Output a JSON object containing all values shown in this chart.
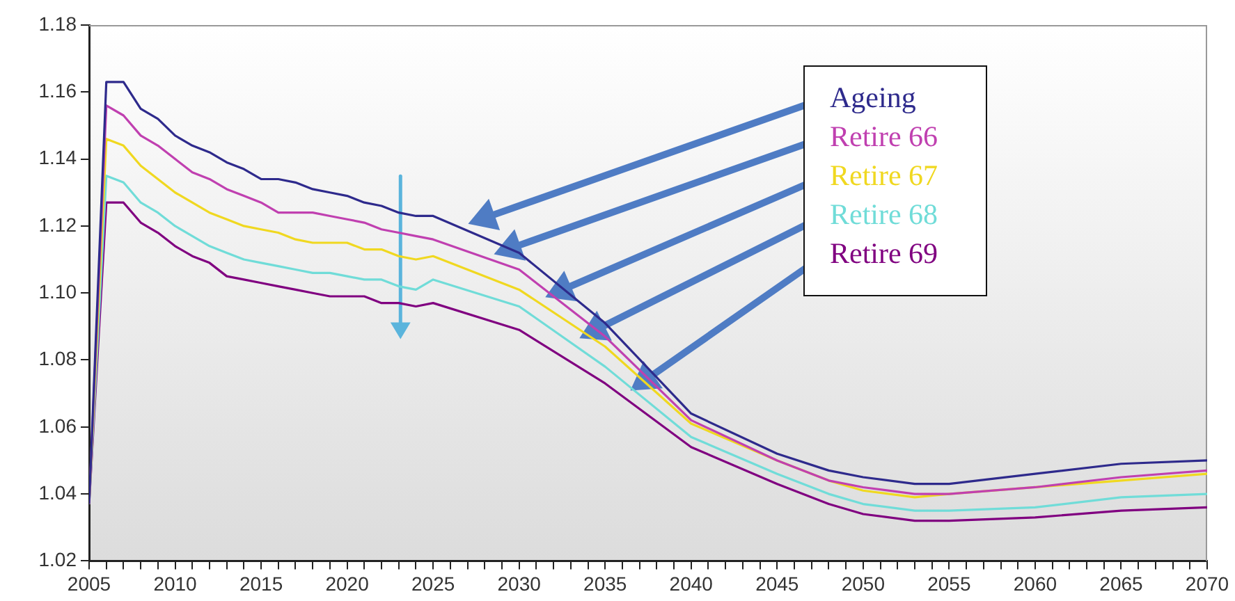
{
  "chart_data": {
    "type": "line",
    "x": [
      2005,
      2006,
      2007,
      2008,
      2009,
      2010,
      2011,
      2012,
      2013,
      2014,
      2015,
      2016,
      2017,
      2018,
      2019,
      2020,
      2021,
      2022,
      2023,
      2024,
      2025,
      2030,
      2035,
      2040,
      2045,
      2048,
      2050,
      2053,
      2055,
      2060,
      2065,
      2070
    ],
    "series": [
      {
        "name": "Ageing",
        "color": "#2e2a8c",
        "values": [
          1.037,
          1.163,
          1.163,
          1.155,
          1.152,
          1.147,
          1.144,
          1.142,
          1.139,
          1.137,
          1.134,
          1.134,
          1.133,
          1.131,
          1.13,
          1.129,
          1.127,
          1.126,
          1.124,
          1.123,
          1.123,
          1.112,
          1.091,
          1.064,
          1.052,
          1.047,
          1.045,
          1.043,
          1.043,
          1.046,
          1.049,
          1.05
        ]
      },
      {
        "name": "Retire 66",
        "color": "#c040b0",
        "values": [
          1.037,
          1.156,
          1.153,
          1.147,
          1.144,
          1.14,
          1.136,
          1.134,
          1.131,
          1.129,
          1.127,
          1.124,
          1.124,
          1.124,
          1.123,
          1.122,
          1.121,
          1.119,
          1.118,
          1.117,
          1.116,
          1.107,
          1.087,
          1.062,
          1.05,
          1.044,
          1.042,
          1.04,
          1.04,
          1.042,
          1.045,
          1.047
        ]
      },
      {
        "name": "Retire 67",
        "color": "#f0d820",
        "values": [
          1.037,
          1.146,
          1.144,
          1.138,
          1.134,
          1.13,
          1.127,
          1.124,
          1.122,
          1.12,
          1.119,
          1.118,
          1.116,
          1.115,
          1.115,
          1.115,
          1.113,
          1.113,
          1.111,
          1.11,
          1.111,
          1.101,
          1.084,
          1.061,
          1.05,
          1.044,
          1.041,
          1.039,
          1.04,
          1.042,
          1.044,
          1.046
        ]
      },
      {
        "name": "Retire 68",
        "color": "#70dcd8",
        "values": [
          1.037,
          1.135,
          1.133,
          1.127,
          1.124,
          1.12,
          1.117,
          1.114,
          1.112,
          1.11,
          1.109,
          1.108,
          1.107,
          1.106,
          1.106,
          1.105,
          1.104,
          1.104,
          1.102,
          1.101,
          1.104,
          1.096,
          1.078,
          1.057,
          1.046,
          1.04,
          1.037,
          1.035,
          1.035,
          1.036,
          1.039,
          1.04
        ]
      },
      {
        "name": "Retire 69",
        "color": "#800080",
        "values": [
          1.037,
          1.127,
          1.127,
          1.121,
          1.118,
          1.114,
          1.111,
          1.109,
          1.105,
          1.104,
          1.103,
          1.102,
          1.101,
          1.1,
          1.099,
          1.099,
          1.099,
          1.097,
          1.097,
          1.096,
          1.097,
          1.089,
          1.073,
          1.054,
          1.043,
          1.037,
          1.034,
          1.032,
          1.032,
          1.033,
          1.035,
          1.036
        ]
      }
    ],
    "xlim": [
      2005,
      2070
    ],
    "xticks": [
      2005,
      {
        "value": 2006,
        "label": null
      },
      {
        "value": 2007,
        "label": null
      },
      {
        "value": 2008,
        "label": null
      },
      {
        "value": 2009,
        "label": null
      },
      2010,
      {
        "value": 2011,
        "label": null
      },
      {
        "value": 2012,
        "label": null
      },
      {
        "value": 2013,
        "label": null
      },
      {
        "value": 2014,
        "label": null
      },
      2015,
      {
        "value": 2016,
        "label": null
      },
      {
        "value": 2017,
        "label": null
      },
      {
        "value": 2018,
        "label": null
      },
      {
        "value": 2019,
        "label": null
      },
      2020,
      {
        "value": 2021,
        "label": null
      },
      {
        "value": 2022,
        "label": null
      },
      {
        "value": 2023,
        "label": null
      },
      {
        "value": 2024,
        "label": null
      },
      2025,
      {
        "value": 2026,
        "label": null
      },
      {
        "value": 2027,
        "label": null
      },
      {
        "value": 2028,
        "label": null
      },
      {
        "value": 2029,
        "label": null
      },
      2030,
      {
        "value": 2031,
        "label": null
      },
      {
        "value": 2032,
        "label": null
      },
      {
        "value": 2033,
        "label": null
      },
      {
        "value": 2034,
        "label": null
      },
      2035,
      {
        "value": 2036,
        "label": null
      },
      {
        "value": 2037,
        "label": null
      },
      {
        "value": 2038,
        "label": null
      },
      {
        "value": 2039,
        "label": null
      },
      2040,
      {
        "value": 2041,
        "label": null
      },
      {
        "value": 2042,
        "label": null
      },
      {
        "value": 2043,
        "label": null
      },
      {
        "value": 2044,
        "label": null
      },
      2045,
      {
        "value": 2046,
        "label": null
      },
      {
        "value": 2047,
        "label": null
      },
      {
        "value": 2048,
        "label": null
      },
      {
        "value": 2049,
        "label": null
      },
      2050,
      {
        "value": 2051,
        "label": null
      },
      {
        "value": 2052,
        "label": null
      },
      {
        "value": 2053,
        "label": null
      },
      {
        "value": 2054,
        "label": null
      },
      2055,
      {
        "value": 2056,
        "label": null
      },
      {
        "value": 2057,
        "label": null
      },
      {
        "value": 2058,
        "label": null
      },
      {
        "value": 2059,
        "label": null
      },
      2060,
      {
        "value": 2061,
        "label": null
      },
      {
        "value": 2062,
        "label": null
      },
      {
        "value": 2063,
        "label": null
      },
      {
        "value": 2064,
        "label": null
      },
      2065,
      {
        "value": 2066,
        "label": null
      },
      {
        "value": 2067,
        "label": null
      },
      {
        "value": 2068,
        "label": null
      },
      {
        "value": 2069,
        "label": null
      },
      2070
    ],
    "ylim": [
      1.02,
      1.18
    ],
    "yticks": [
      {
        "value": 1.02,
        "label": "1.02"
      },
      1.04,
      1.06,
      1.08,
      {
        "value": 1.1,
        "label": "1.10"
      },
      1.12,
      1.14,
      1.16,
      1.18
    ],
    "grid": false,
    "legend": "top right",
    "marker": "none",
    "line_style": "solid"
  }
}
